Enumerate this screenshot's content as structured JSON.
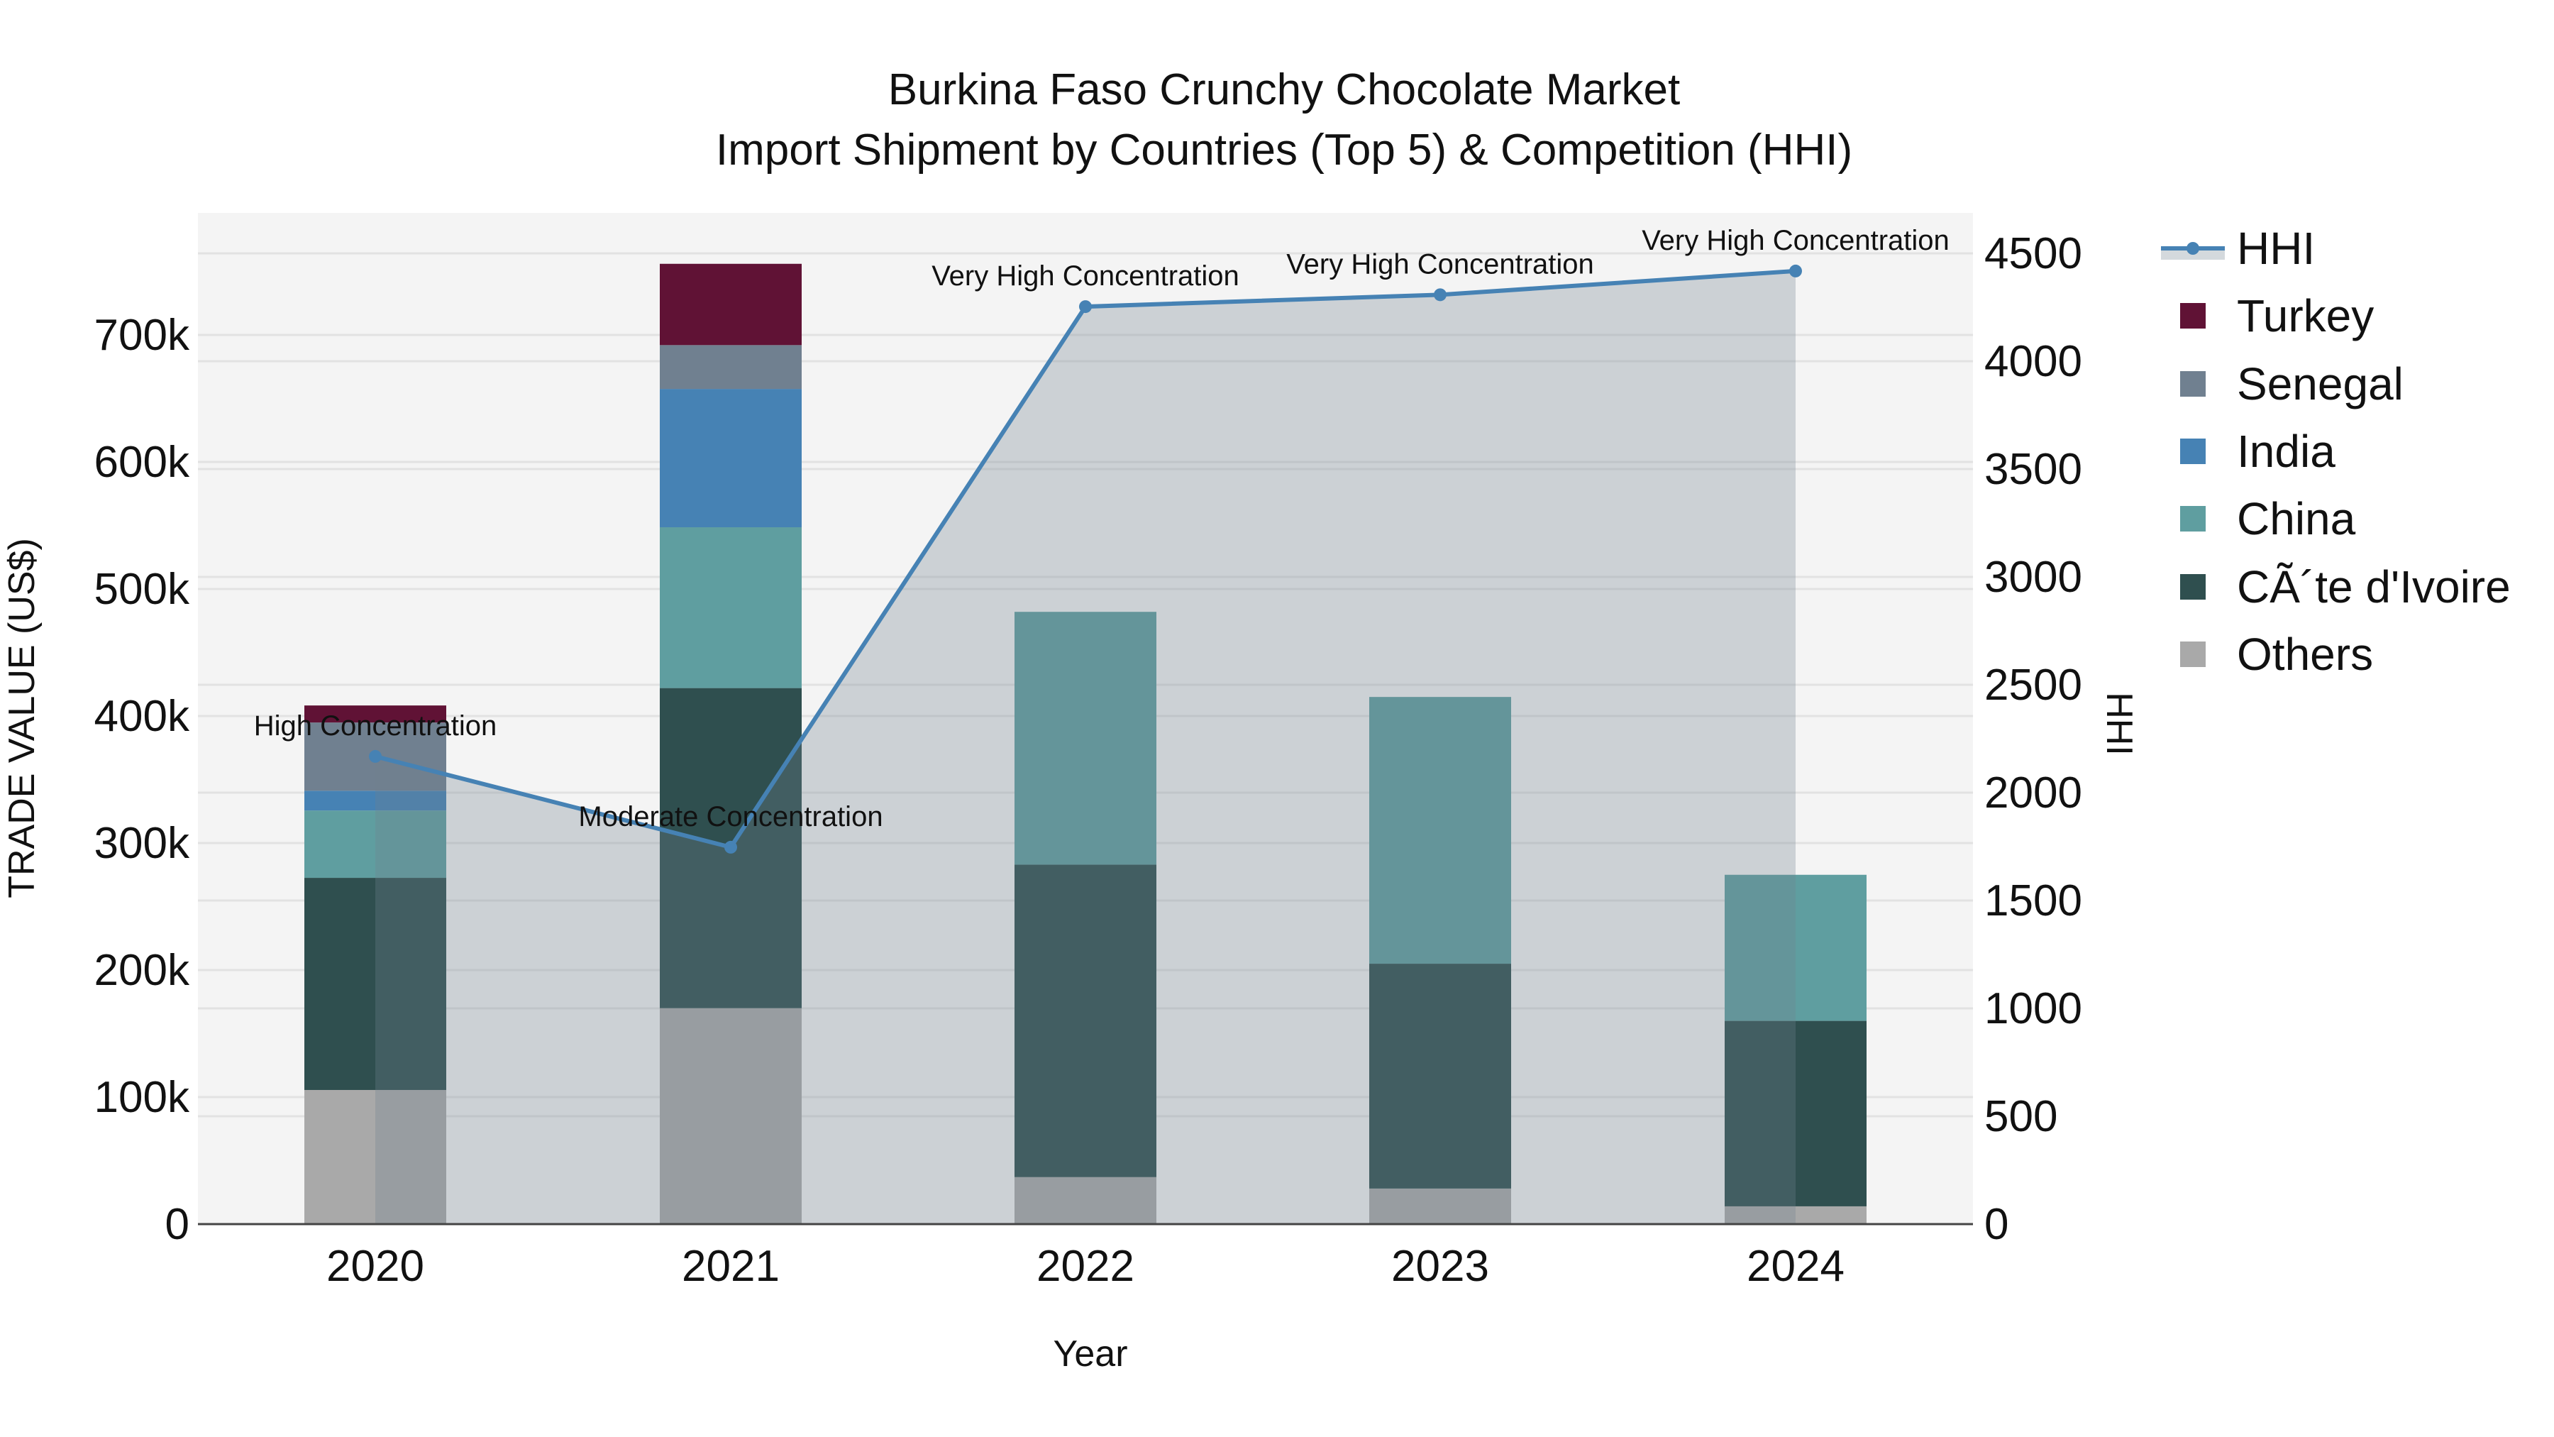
{
  "title": {
    "line1": "Burkina Faso Crunchy Chocolate Market",
    "line2": "Import Shipment by Countries (Top 5) & Competition (HHI)"
  },
  "axes": {
    "x_title": "Year",
    "y_left_title": "TRADE VALUE (US$)",
    "y_right_title": "HHI",
    "y_left_ticks": [
      "0",
      "100k",
      "200k",
      "300k",
      "400k",
      "500k",
      "600k",
      "700k"
    ],
    "y_right_ticks": [
      "0",
      "500",
      "1000",
      "1500",
      "2000",
      "2500",
      "3000",
      "3500",
      "4000",
      "4500"
    ],
    "x_ticks": [
      "2020",
      "2021",
      "2022",
      "2023",
      "2024"
    ]
  },
  "legend": [
    {
      "label": "HHI",
      "type": "line",
      "color": "#4682B4"
    },
    {
      "label": "Turkey",
      "type": "bar",
      "color": "#601235"
    },
    {
      "label": "Senegal",
      "type": "bar",
      "color": "#708090"
    },
    {
      "label": "India",
      "type": "bar",
      "color": "#4682B4"
    },
    {
      "label": "China",
      "type": "bar",
      "color": "#5F9EA0"
    },
    {
      "label": "CÃ´te d'Ivoire",
      "type": "bar",
      "color": "#2F4F4F"
    },
    {
      "label": "Others",
      "type": "bar",
      "color": "#A9A9A9"
    }
  ],
  "annotations": [
    {
      "year": "2020",
      "text": "High Concentration"
    },
    {
      "year": "2021",
      "text": "Moderate Concentration"
    },
    {
      "year": "2022",
      "text": "Very High Concentration"
    },
    {
      "year": "2023",
      "text": "Very High Concentration"
    },
    {
      "year": "2024",
      "text": "Very High Concentration"
    }
  ],
  "chart_data": {
    "type": "bar",
    "subtype": "stacked bar + line (secondary axis)",
    "title": "Burkina Faso Crunchy Chocolate Market / Import Shipment by Countries (Top 5) & Competition (HHI)",
    "xlabel": "Year",
    "ylabel": "TRADE VALUE (US$)",
    "y2label": "HHI",
    "categories": [
      "2020",
      "2021",
      "2022",
      "2023",
      "2024"
    ],
    "ylim": [
      0,
      795000
    ],
    "y2lim": [
      0,
      4690
    ],
    "grid": true,
    "legend_position": "right",
    "series": [
      {
        "name": "Others",
        "color": "#A9A9A9",
        "values": [
          105600,
          170000,
          37000,
          28000,
          14000
        ]
      },
      {
        "name": "CÃ´te d'Ivoire",
        "color": "#2F4F4F",
        "values": [
          167000,
          252000,
          246000,
          177000,
          146000
        ]
      },
      {
        "name": "China",
        "color": "#5F9EA0",
        "values": [
          53000,
          126600,
          199000,
          210000,
          115000
        ]
      },
      {
        "name": "India",
        "color": "#4682B4",
        "values": [
          15600,
          108900,
          0,
          0,
          0
        ]
      },
      {
        "name": "Senegal",
        "color": "#708090",
        "values": [
          53700,
          34500,
          0,
          0,
          0
        ]
      },
      {
        "name": "Turkey",
        "color": "#601235",
        "values": [
          13400,
          64000,
          0,
          0,
          0
        ]
      }
    ],
    "line_series": {
      "name": "HHI",
      "axis": "right",
      "color": "#4682B4",
      "fill": "tozeroy",
      "values": [
        2168,
        1747,
        4253,
        4308,
        4418
      ],
      "labels": [
        "High Concentration",
        "Moderate Concentration",
        "Very High Concentration",
        "Very High Concentration",
        "Very High Concentration"
      ]
    }
  }
}
